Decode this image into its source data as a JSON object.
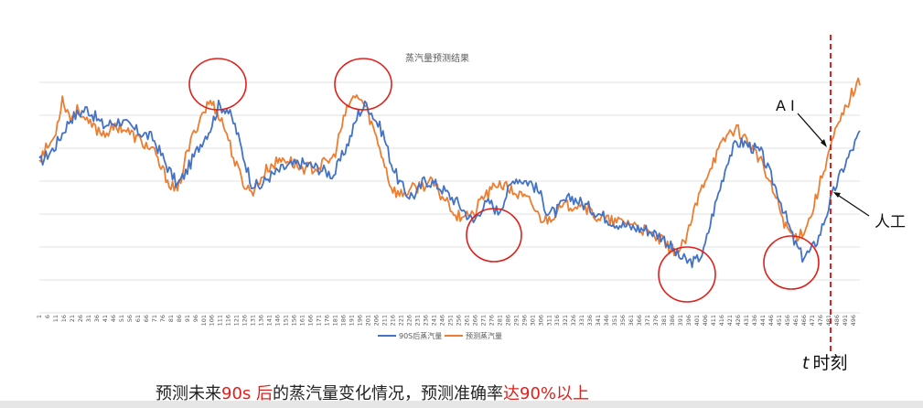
{
  "chart_data": {
    "type": "line",
    "title": "蒸汽量预测结果",
    "xlabel": "",
    "ylabel": "",
    "x_range": [
      1,
      500
    ],
    "x_tick_labels": [
      "1",
      "6",
      "11",
      "16",
      "21",
      "26",
      "31",
      "36",
      "41",
      "46",
      "51",
      "56",
      "61",
      "66",
      "71",
      "76",
      "81",
      "86",
      "91",
      "96",
      "101",
      "106",
      "111",
      "116",
      "121",
      "126",
      "131",
      "136",
      "141",
      "146",
      "151",
      "156",
      "161",
      "166",
      "171",
      "176",
      "181",
      "186",
      "191",
      "196",
      "201",
      "206",
      "211",
      "216",
      "221",
      "226",
      "231",
      "236",
      "241",
      "246",
      "251",
      "256",
      "261",
      "266",
      "271",
      "276",
      "281",
      "286",
      "291",
      "296",
      "301",
      "306",
      "311",
      "316",
      "321",
      "326",
      "331",
      "336",
      "341",
      "346",
      "351",
      "356",
      "361",
      "366",
      "371",
      "376",
      "381",
      "386",
      "391",
      "396",
      "401",
      "406",
      "411",
      "416",
      "421",
      "426",
      "431",
      "436",
      "441",
      "446",
      "451",
      "456",
      "461",
      "466",
      "471",
      "476",
      "481",
      "486",
      "491",
      "496"
    ],
    "grid": true,
    "legend_position": "bottom-center",
    "series": [
      {
        "name": "90S后蒸汽量",
        "color": "#4472c4",
        "x": [
          1,
          10,
          20,
          30,
          40,
          50,
          60,
          70,
          80,
          85,
          90,
          100,
          105,
          110,
          115,
          120,
          125,
          130,
          135,
          140,
          150,
          160,
          170,
          180,
          190,
          195,
          200,
          205,
          210,
          215,
          220,
          225,
          230,
          235,
          240,
          245,
          250,
          255,
          260,
          265,
          270,
          275,
          280,
          290,
          300,
          305,
          310,
          315,
          320,
          325,
          330,
          340,
          350,
          360,
          370,
          380,
          390,
          395,
          400,
          405,
          410,
          415,
          420,
          425,
          430,
          435,
          440,
          445,
          450,
          455,
          460,
          465,
          470,
          475,
          480,
          485,
          490,
          495,
          500
        ],
        "y": [
          60,
          66,
          78,
          82,
          75,
          77,
          73,
          70,
          57,
          51,
          56,
          69,
          74,
          83,
          82,
          75,
          63,
          52,
          50,
          54,
          58,
          60,
          58,
          55,
          70,
          80,
          84,
          78,
          72,
          60,
          52,
          47,
          47,
          53,
          52,
          50,
          47,
          44,
          40,
          36,
          42,
          44,
          40,
          54,
          52,
          48,
          40,
          40,
          44,
          46,
          44,
          40,
          36,
          34,
          33,
          30,
          22,
          20,
          20,
          24,
          38,
          50,
          62,
          68,
          68,
          66,
          64,
          56,
          48,
          38,
          28,
          22,
          24,
          30,
          40,
          50,
          58,
          65,
          72
        ]
      },
      {
        "name": "预测蒸汽量",
        "color": "#ed7d31",
        "x": [
          1,
          10,
          15,
          20,
          25,
          30,
          40,
          50,
          60,
          70,
          75,
          80,
          85,
          90,
          95,
          100,
          105,
          110,
          115,
          120,
          125,
          130,
          140,
          150,
          160,
          170,
          180,
          185,
          190,
          195,
          200,
          205,
          210,
          215,
          220,
          230,
          240,
          245,
          250,
          255,
          260,
          265,
          270,
          275,
          280,
          290,
          300,
          305,
          310,
          315,
          320,
          330,
          340,
          350,
          360,
          370,
          380,
          385,
          390,
          395,
          400,
          405,
          410,
          415,
          420,
          425,
          430,
          435,
          440,
          445,
          450,
          455,
          460,
          465,
          470,
          475,
          480,
          485,
          490,
          495,
          500
        ],
        "y": [
          62,
          70,
          86,
          78,
          82,
          76,
          72,
          75,
          70,
          65,
          58,
          52,
          48,
          62,
          72,
          80,
          85,
          80,
          72,
          60,
          52,
          48,
          58,
          62,
          58,
          58,
          62,
          75,
          85,
          87,
          82,
          72,
          62,
          50,
          47,
          50,
          52,
          47,
          44,
          38,
          40,
          38,
          46,
          48,
          52,
          48,
          44,
          38,
          37,
          40,
          42,
          44,
          38,
          36,
          36,
          32,
          28,
          25,
          24,
          30,
          42,
          52,
          60,
          66,
          72,
          74,
          70,
          66,
          60,
          52,
          44,
          34,
          30,
          32,
          38,
          50,
          62,
          72,
          80,
          88,
          93
        ]
      }
    ],
    "annotations": {
      "ai_label": "A I",
      "human_label": "人工",
      "t_label_italic": "t",
      "t_label_rest": "时刻"
    }
  },
  "caption": {
    "part1": "预测未来",
    "part2": "90s 后",
    "part3": "的蒸汽量变化情况，预测准确率",
    "part4": "达90%以上"
  },
  "colors": {
    "circle": "#e0201b",
    "dashed_line": "#e0201b",
    "grid": "#d9d9d9"
  }
}
